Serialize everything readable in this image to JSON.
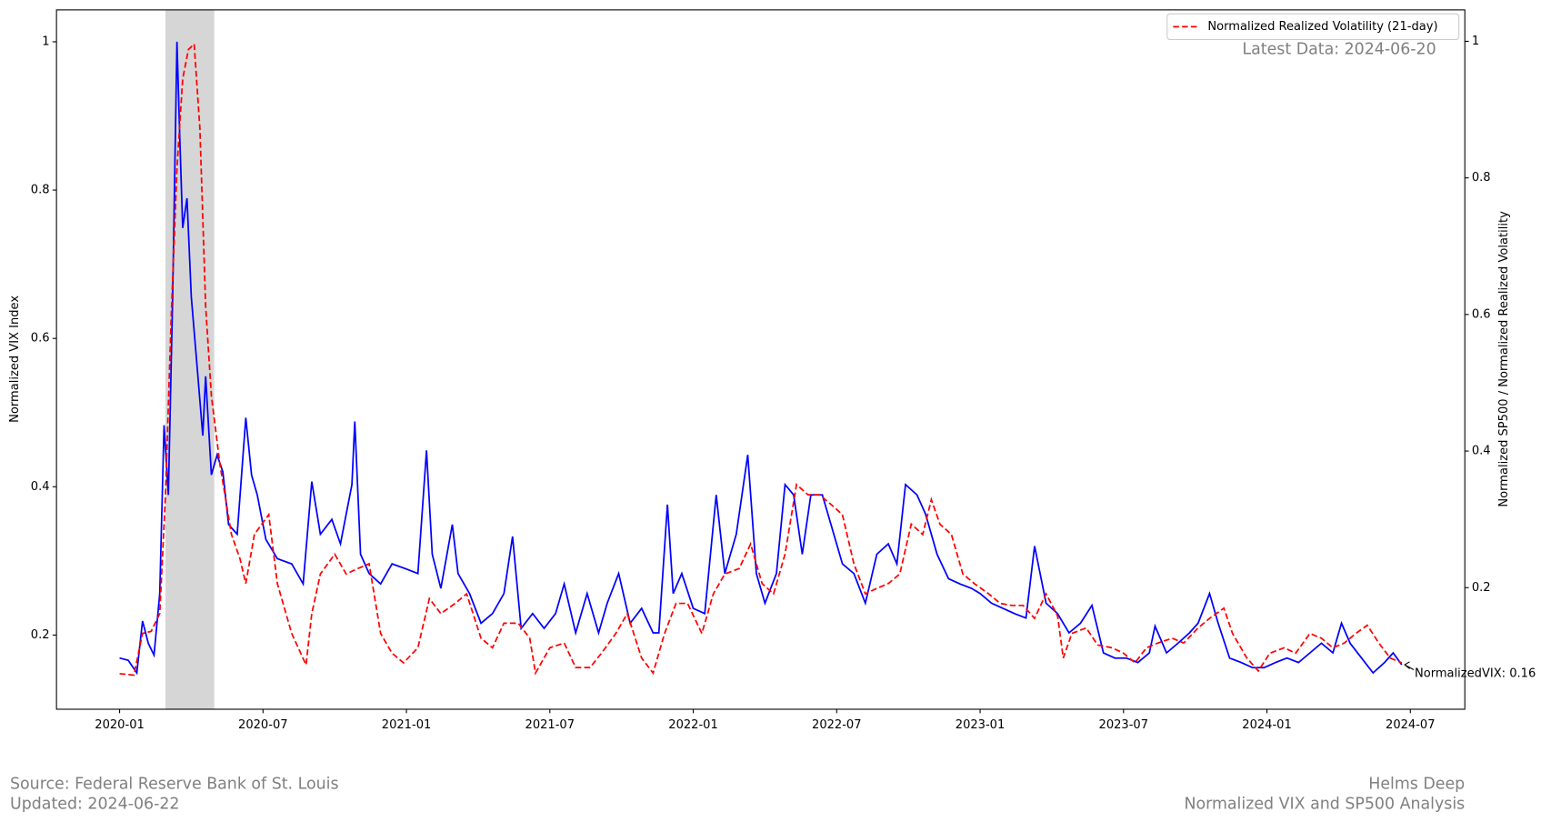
{
  "chart_data": {
    "type": "line",
    "ylabel": "Normalized VIX Index",
    "y2label": "Normalized SP500 / Normalized Realized Volatility",
    "xlim": [
      2019.78,
      2024.69
    ],
    "xticks": [
      {
        "value": 2020.0,
        "label": "2020-01"
      },
      {
        "value": 2020.5,
        "label": "2020-07"
      },
      {
        "value": 2021.0,
        "label": "2021-01"
      },
      {
        "value": 2021.5,
        "label": "2021-07"
      },
      {
        "value": 2022.0,
        "label": "2022-01"
      },
      {
        "value": 2022.5,
        "label": "2022-07"
      },
      {
        "value": 2023.0,
        "label": "2023-01"
      },
      {
        "value": 2023.5,
        "label": "2023-07"
      },
      {
        "value": 2024.0,
        "label": "2024-01"
      },
      {
        "value": 2024.5,
        "label": "2024-07"
      }
    ],
    "ylim": [
      0.1,
      1.043
    ],
    "yticks": [
      0.2,
      0.4,
      0.6,
      0.8,
      1.0
    ],
    "y2lim": [
      0.022,
      1.046
    ],
    "y2ticks": [
      0.2,
      0.4,
      0.6,
      0.8,
      1.0
    ],
    "grid": false,
    "legend_loc": "upper right",
    "shaded_span": [
      2020.16,
      2020.33
    ],
    "shaded_color": "#d6d6d6",
    "series": [
      {
        "color": "#0000ff",
        "dash": "solid",
        "x": [
          2020.0,
          2020.03,
          2020.06,
          2020.08,
          2020.1,
          2020.12,
          2020.14,
          2020.155,
          2020.17,
          2020.185,
          2020.2,
          2020.21,
          2020.22,
          2020.235,
          2020.25,
          2020.27,
          2020.29,
          2020.3,
          2020.32,
          2020.34,
          2020.36,
          2020.38,
          2020.41,
          2020.44,
          2020.46,
          2020.48,
          2020.51,
          2020.55,
          2020.6,
          2020.64,
          2020.67,
          2020.7,
          2020.74,
          2020.77,
          2020.81,
          2020.82,
          2020.84,
          2020.87,
          2020.91,
          2020.95,
          2021.0,
          2021.04,
          2021.07,
          2021.09,
          2021.12,
          2021.16,
          2021.18,
          2021.22,
          2021.26,
          2021.3,
          2021.34,
          2021.37,
          2021.4,
          2021.44,
          2021.48,
          2021.52,
          2021.55,
          2021.59,
          2021.63,
          2021.67,
          2021.7,
          2021.74,
          2021.78,
          2021.82,
          2021.86,
          2021.88,
          2021.91,
          2021.93,
          2021.96,
          2022.0,
          2022.04,
          2022.08,
          2022.11,
          2022.15,
          2022.19,
          2022.22,
          2022.25,
          2022.29,
          2022.32,
          2022.35,
          2022.38,
          2022.41,
          2022.45,
          2022.49,
          2022.52,
          2022.56,
          2022.6,
          2022.64,
          2022.68,
          2022.71,
          2022.74,
          2022.78,
          2022.81,
          2022.85,
          2022.89,
          2022.93,
          2022.97,
          2023.0,
          2023.04,
          2023.08,
          2023.12,
          2023.16,
          2023.19,
          2023.23,
          2023.27,
          2023.31,
          2023.35,
          2023.39,
          2023.43,
          2023.47,
          2023.51,
          2023.55,
          2023.59,
          2023.61,
          2023.65,
          2023.69,
          2023.73,
          2023.76,
          2023.8,
          2023.83,
          2023.87,
          2023.91,
          2023.95,
          2023.99,
          2024.03,
          2024.07,
          2024.11,
          2024.15,
          2024.19,
          2024.23,
          2024.26,
          2024.29,
          2024.33,
          2024.37,
          2024.41,
          2024.44,
          2024.47
        ],
        "values": [
          0.169,
          0.166,
          0.149,
          0.219,
          0.189,
          0.173,
          0.256,
          0.483,
          0.389,
          0.656,
          1.0,
          0.869,
          0.749,
          0.789,
          0.656,
          0.563,
          0.469,
          0.549,
          0.416,
          0.443,
          0.42,
          0.349,
          0.336,
          0.493,
          0.416,
          0.389,
          0.329,
          0.303,
          0.296,
          0.269,
          0.407,
          0.336,
          0.356,
          0.323,
          0.403,
          0.488,
          0.309,
          0.283,
          0.269,
          0.296,
          0.289,
          0.283,
          0.449,
          0.309,
          0.263,
          0.349,
          0.283,
          0.256,
          0.216,
          0.229,
          0.256,
          0.333,
          0.209,
          0.229,
          0.209,
          0.229,
          0.269,
          0.203,
          0.256,
          0.203,
          0.243,
          0.283,
          0.216,
          0.236,
          0.203,
          0.203,
          0.376,
          0.256,
          0.283,
          0.236,
          0.229,
          0.389,
          0.283,
          0.336,
          0.443,
          0.283,
          0.243,
          0.283,
          0.403,
          0.389,
          0.309,
          0.389,
          0.389,
          0.336,
          0.296,
          0.283,
          0.243,
          0.309,
          0.323,
          0.296,
          0.403,
          0.389,
          0.363,
          0.309,
          0.276,
          0.269,
          0.263,
          0.256,
          0.243,
          0.236,
          0.229,
          0.223,
          0.32,
          0.243,
          0.229,
          0.203,
          0.216,
          0.24,
          0.176,
          0.169,
          0.169,
          0.163,
          0.176,
          0.212,
          0.176,
          0.189,
          0.203,
          0.216,
          0.256,
          0.216,
          0.169,
          0.163,
          0.156,
          0.156,
          0.163,
          0.169,
          0.163,
          0.176,
          0.189,
          0.176,
          0.216,
          0.189,
          0.169,
          0.149,
          0.163,
          0.176,
          0.16
        ]
      },
      {
        "name": "Normalized Realized Volatility (21-day)",
        "color": "#ff0000",
        "dash": "dashed",
        "axis": "y2",
        "x": [
          2020.0,
          2020.05,
          2020.08,
          2020.11,
          2020.14,
          2020.16,
          2020.18,
          2020.2,
          2020.22,
          2020.24,
          2020.26,
          2020.28,
          2020.3,
          2020.32,
          2020.35,
          2020.39,
          2020.42,
          2020.44,
          2020.47,
          2020.52,
          2020.55,
          2020.6,
          2020.65,
          2020.67,
          2020.7,
          2020.75,
          2020.79,
          2020.83,
          2020.87,
          2020.91,
          2020.95,
          2020.99,
          2021.04,
          2021.08,
          2021.12,
          2021.17,
          2021.21,
          2021.26,
          2021.3,
          2021.34,
          2021.39,
          2021.43,
          2021.45,
          2021.5,
          2021.55,
          2021.59,
          2021.64,
          2021.68,
          2021.73,
          2021.77,
          2021.82,
          2021.86,
          2021.9,
          2021.94,
          2021.98,
          2022.03,
          2022.07,
          2022.11,
          2022.16,
          2022.2,
          2022.24,
          2022.28,
          2022.32,
          2022.36,
          2022.4,
          2022.44,
          2022.48,
          2022.52,
          2022.56,
          2022.6,
          2022.64,
          2022.68,
          2022.72,
          2022.76,
          2022.8,
          2022.83,
          2022.86,
          2022.9,
          2022.94,
          2022.98,
          2023.03,
          2023.07,
          2023.11,
          2023.15,
          2023.19,
          2023.23,
          2023.27,
          2023.29,
          2023.32,
          2023.37,
          2023.41,
          2023.46,
          2023.5,
          2023.54,
          2023.58,
          2023.62,
          2023.67,
          2023.71,
          2023.76,
          2023.8,
          2023.85,
          2023.88,
          2023.93,
          2023.97,
          2024.01,
          2024.06,
          2024.1,
          2024.15,
          2024.19,
          2024.23,
          2024.27,
          2024.31,
          2024.35,
          2024.39,
          2024.43,
          2024.47
        ],
        "values": [
          0.074,
          0.072,
          0.133,
          0.136,
          0.162,
          0.336,
          0.597,
          0.814,
          0.945,
          0.988,
          0.996,
          0.872,
          0.612,
          0.481,
          0.38,
          0.278,
          0.242,
          0.206,
          0.278,
          0.307,
          0.206,
          0.133,
          0.087,
          0.162,
          0.22,
          0.249,
          0.22,
          0.228,
          0.235,
          0.133,
          0.104,
          0.09,
          0.112,
          0.184,
          0.162,
          0.177,
          0.191,
          0.126,
          0.112,
          0.148,
          0.148,
          0.126,
          0.075,
          0.112,
          0.119,
          0.083,
          0.083,
          0.104,
          0.133,
          0.162,
          0.097,
          0.075,
          0.133,
          0.177,
          0.177,
          0.133,
          0.191,
          0.22,
          0.228,
          0.264,
          0.206,
          0.191,
          0.249,
          0.351,
          0.336,
          0.336,
          0.322,
          0.307,
          0.235,
          0.191,
          0.199,
          0.206,
          0.22,
          0.293,
          0.278,
          0.329,
          0.293,
          0.278,
          0.22,
          0.206,
          0.191,
          0.177,
          0.174,
          0.174,
          0.155,
          0.191,
          0.159,
          0.097,
          0.133,
          0.141,
          0.116,
          0.112,
          0.104,
          0.09,
          0.112,
          0.119,
          0.126,
          0.119,
          0.141,
          0.155,
          0.17,
          0.133,
          0.097,
          0.078,
          0.104,
          0.112,
          0.104,
          0.133,
          0.126,
          0.112,
          0.119,
          0.133,
          0.145,
          0.119,
          0.097,
          0.09
        ]
      }
    ],
    "annotation": "NormalizedVIX: 0.16",
    "latest_data": "Latest Data: 2024-06-20",
    "footer_left": [
      "Source: Federal Reserve Bank of St. Louis",
      "Updated: 2024-06-22"
    ],
    "footer_right": [
      "Helms Deep",
      "Normalized VIX and SP500 Analysis"
    ]
  }
}
